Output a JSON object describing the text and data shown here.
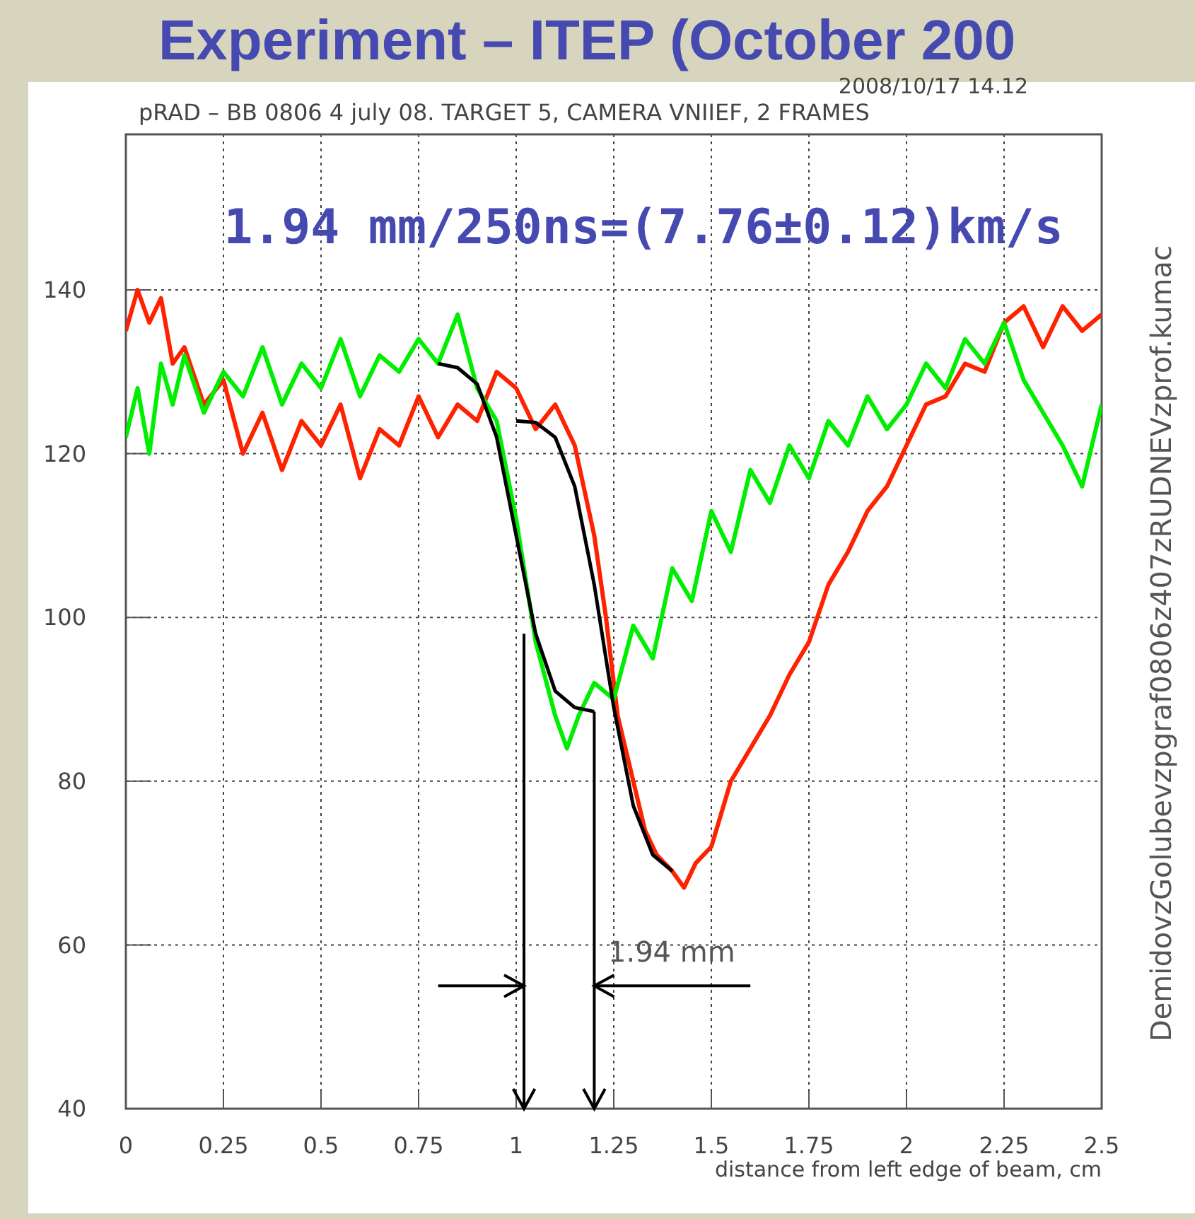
{
  "chart_data": {
    "type": "line",
    "title": "Experiment – ITEP (October 200",
    "subtitle": "pRAD – BB  0806 4 july 08. TARGET 5, CAMERA VNIIEF, 2 FRAMES",
    "xlabel": "distance from left edge of beam, cm",
    "annotations": [
      "2008/10/17  14.12",
      "1.94 mm/250ns=(7.76±0.12)km/s",
      "DemidovzGolubevzpgraf0806z407zRUDNEVzprof.kumac",
      "1.94 mm"
    ],
    "series": [
      {
        "color": "#ff2200",
        "x": [
          0,
          0.03,
          0.06,
          0.09,
          0.12,
          0.15,
          0.2,
          0.25,
          0.3,
          0.35,
          0.4,
          0.45,
          0.5,
          0.55,
          0.6,
          0.65,
          0.7,
          0.75,
          0.8,
          0.85,
          0.9,
          0.95,
          1.0,
          1.05,
          1.1,
          1.15,
          1.2,
          1.23,
          1.26,
          1.3,
          1.33,
          1.36,
          1.4,
          1.43,
          1.46,
          1.5,
          1.55,
          1.6,
          1.65,
          1.7,
          1.75,
          1.8,
          1.85,
          1.9,
          1.95,
          2.0,
          2.05,
          2.1,
          2.15,
          2.2,
          2.25,
          2.3,
          2.35,
          2.4,
          2.45,
          2.5
        ],
        "values": [
          135,
          140,
          136,
          139,
          131,
          133,
          126,
          129,
          120,
          125,
          118,
          124,
          121,
          126,
          117,
          123,
          121,
          127,
          122,
          126,
          124,
          130,
          128,
          123,
          126,
          121,
          110,
          100,
          88,
          80,
          74,
          71,
          69,
          67,
          70,
          72,
          80,
          84,
          88,
          93,
          97,
          104,
          108,
          113,
          116,
          121,
          126,
          127,
          131,
          130,
          136,
          138,
          133,
          138,
          135,
          137
        ]
      },
      {
        "color": "#00ee00",
        "x": [
          0,
          0.03,
          0.06,
          0.09,
          0.12,
          0.15,
          0.2,
          0.25,
          0.3,
          0.35,
          0.4,
          0.45,
          0.5,
          0.55,
          0.6,
          0.65,
          0.7,
          0.75,
          0.8,
          0.85,
          0.9,
          0.95,
          1.0,
          1.05,
          1.1,
          1.13,
          1.16,
          1.2,
          1.25,
          1.3,
          1.35,
          1.4,
          1.45,
          1.5,
          1.55,
          1.6,
          1.65,
          1.7,
          1.75,
          1.8,
          1.85,
          1.9,
          1.95,
          2.0,
          2.05,
          2.1,
          2.15,
          2.2,
          2.25,
          2.3,
          2.35,
          2.4,
          2.45,
          2.5
        ],
        "values": [
          122,
          128,
          120,
          131,
          126,
          132,
          125,
          130,
          127,
          133,
          126,
          131,
          128,
          134,
          127,
          132,
          130,
          134,
          131,
          137,
          128,
          124,
          112,
          97,
          88,
          84,
          88,
          92,
          90,
          99,
          95,
          106,
          102,
          113,
          108,
          118,
          114,
          121,
          117,
          124,
          121,
          127,
          123,
          126,
          131,
          128,
          134,
          131,
          136,
          129,
          125,
          121,
          116,
          126
        ]
      },
      {
        "color": "#000000",
        "x": [
          0.8,
          0.85,
          0.9,
          0.95,
          1.0,
          1.05,
          1.1,
          1.15,
          1.2
        ],
        "values": [
          131,
          130.5,
          128.5,
          122,
          110,
          98,
          91,
          89,
          88.5
        ]
      },
      {
        "color": "#000000",
        "x": [
          1.0,
          1.05,
          1.1,
          1.15,
          1.2,
          1.25,
          1.3,
          1.35,
          1.4
        ],
        "values": [
          124,
          123.8,
          122,
          116,
          104,
          89,
          77,
          71,
          69
        ]
      }
    ],
    "xlim": [
      0,
      2.5
    ],
    "ylim": [
      40,
      159
    ],
    "xticks": [
      0,
      0.25,
      0.5,
      0.75,
      1,
      1.25,
      1.5,
      1.75,
      2,
      2.25,
      2.5
    ],
    "yticks": [
      40,
      60,
      80,
      100,
      120,
      140
    ],
    "grid": true,
    "marker": "none",
    "line_style": "solid"
  }
}
